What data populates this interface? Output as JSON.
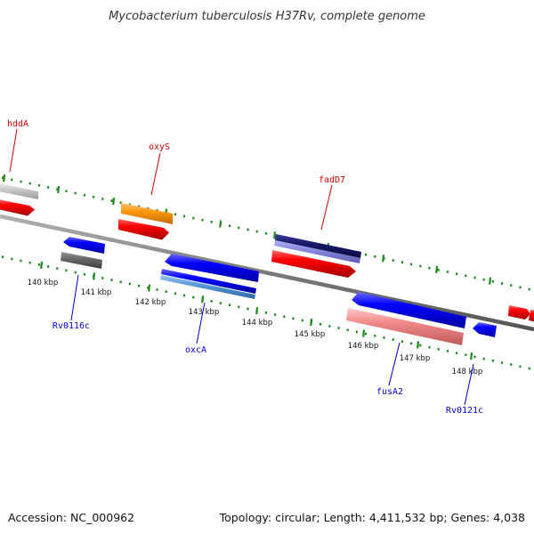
{
  "title": "Mycobacterium tuberculosis H37Rv, complete genome",
  "accession": "Accession: NC_000962",
  "summary": "Topology: circular; Length: 4,411,532 bp; Genes: 4,038",
  "colors": {
    "backbone": "#808080",
    "ticks": "#1e8a1e",
    "forward_label": "#cc0000",
    "reverse_label": "#0000cc"
  },
  "kbp_labels": [
    "140 kbp",
    "141 kbp",
    "142 kbp",
    "143 kbp",
    "144 kbp",
    "145 kbp",
    "146 kbp",
    "147 kbp",
    "148 kbp"
  ],
  "gene_labels": [
    {
      "text": "hddA",
      "strand": "forward"
    },
    {
      "text": "oxyS",
      "strand": "forward"
    },
    {
      "text": "fadD7",
      "strand": "forward"
    },
    {
      "text": "Rv0116c",
      "strand": "reverse"
    },
    {
      "text": "oxcA",
      "strand": "reverse"
    },
    {
      "text": "fusA2",
      "strand": "reverse"
    },
    {
      "text": "Rv0121c",
      "strand": "reverse"
    }
  ]
}
